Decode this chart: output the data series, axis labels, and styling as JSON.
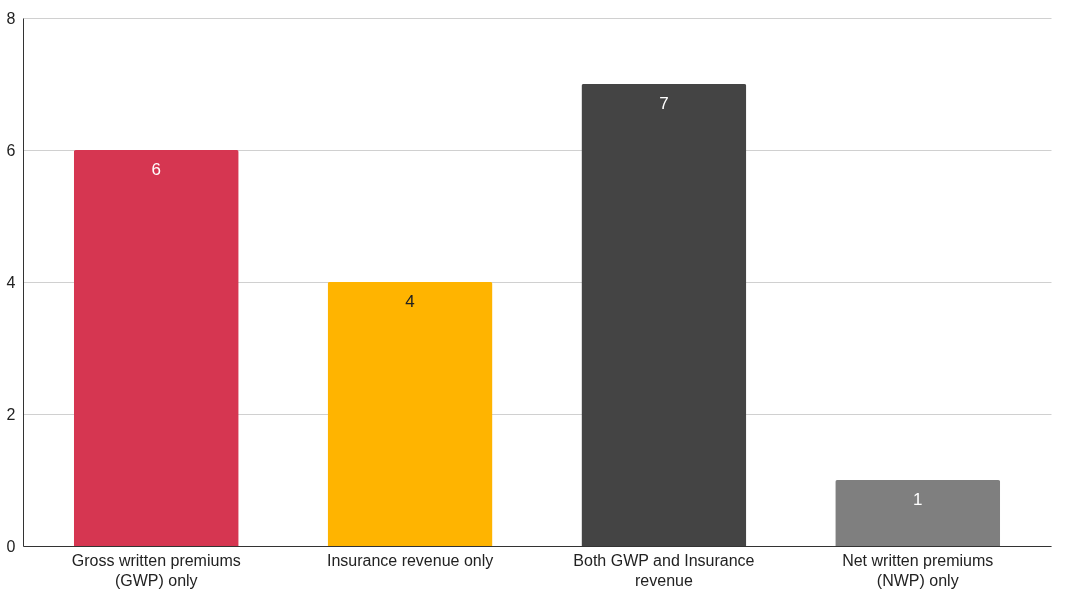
{
  "chart_data": {
    "type": "bar",
    "categories": [
      "Gross written premiums (GWP) only",
      "Insurance revenue only",
      "Both GWP and Insurance revenue",
      "Net written premiums (NWP) only"
    ],
    "values": [
      6,
      4,
      7,
      1
    ],
    "colors": [
      "#d63651",
      "#ffb400",
      "#444444",
      "#7f7f7f"
    ],
    "ylim": [
      0,
      8
    ],
    "yticks": [
      0,
      2,
      4,
      6,
      8
    ],
    "grid": "y",
    "data_labels": true
  }
}
